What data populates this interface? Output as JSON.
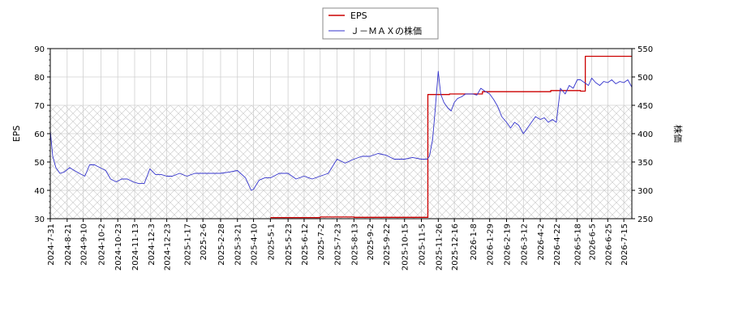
{
  "chart_data": {
    "type": "line",
    "legend": {
      "placement": "top-center",
      "entries": [
        {
          "name": "EPS",
          "color": "#cc0000"
        },
        {
          "name": "Ｊ－ＭＡＸの株価",
          "color": "#3333cc"
        }
      ]
    },
    "y_left": {
      "label": "EPS",
      "ylim": [
        30,
        90
      ],
      "ticks": [
        30,
        40,
        50,
        60,
        70,
        80,
        90
      ]
    },
    "y_right": {
      "label": "株価",
      "ylim": [
        250,
        550
      ],
      "ticks": [
        250,
        300,
        350,
        400,
        450,
        500,
        550
      ]
    },
    "x_range": [
      "2024-07-31",
      "2026-07-25"
    ],
    "x_ticks": [
      "2024-7-31",
      "2024-8-21",
      "2024-9-10",
      "2024-10-2",
      "2024-10-23",
      "2024-11-13",
      "2024-12-3",
      "2024-12-23",
      "2025-1-17",
      "2025-2-6",
      "2025-2-28",
      "2025-3-21",
      "2025-4-10",
      "2025-5-1",
      "2025-5-23",
      "2025-6-12",
      "2025-7-2",
      "2025-7-23",
      "2025-8-13",
      "2025-9-2",
      "2025-9-22",
      "2025-10-15",
      "2025-11-5",
      "2025-11-26",
      "2025-12-16",
      "2026-1-8",
      "2026-1-29",
      "2026-2-19",
      "2026-3-12",
      "2026-4-2",
      "2026-4-22",
      "2026-5-18",
      "2026-6-5",
      "2026-6-25",
      "2026-7-15"
    ],
    "grid": true,
    "hatched_region": {
      "axis": "left",
      "from": 30,
      "to": 70
    },
    "series": [
      {
        "name": "EPS",
        "axis": "left",
        "color": "#cc0000",
        "step": true,
        "x": [
          "2025-05-01",
          "2025-07-02",
          "2025-08-13",
          "2025-11-12",
          "2025-11-13",
          "2025-12-10",
          "2026-01-20",
          "2026-04-15",
          "2026-05-22",
          "2026-05-28",
          "2026-07-25"
        ],
        "y": [
          30.4,
          30.6,
          30.5,
          30.5,
          73.8,
          74.0,
          74.8,
          75.2,
          75.0,
          87.3,
          87.3
        ]
      },
      {
        "name": "Ｊ－ＭＡＸの株価",
        "axis": "right",
        "color": "#3333cc",
        "x": [
          "2024-07-31",
          "2024-08-03",
          "2024-08-07",
          "2024-08-12",
          "2024-08-17",
          "2024-08-24",
          "2024-08-30",
          "2024-09-05",
          "2024-09-12",
          "2024-09-18",
          "2024-09-24",
          "2024-10-01",
          "2024-10-08",
          "2024-10-14",
          "2024-10-21",
          "2024-10-28",
          "2024-11-04",
          "2024-11-11",
          "2024-11-18",
          "2024-11-25",
          "2024-12-02",
          "2024-12-09",
          "2024-12-16",
          "2024-12-23",
          "2024-12-30",
          "2025-01-08",
          "2025-01-17",
          "2025-01-27",
          "2025-02-06",
          "2025-02-17",
          "2025-02-28",
          "2025-03-10",
          "2025-03-21",
          "2025-03-31",
          "2025-04-07",
          "2025-04-10",
          "2025-04-17",
          "2025-04-24",
          "2025-05-01",
          "2025-05-12",
          "2025-05-23",
          "2025-06-02",
          "2025-06-12",
          "2025-06-22",
          "2025-07-02",
          "2025-07-12",
          "2025-07-23",
          "2025-08-02",
          "2025-08-13",
          "2025-08-23",
          "2025-09-02",
          "2025-09-12",
          "2025-09-22",
          "2025-10-02",
          "2025-10-15",
          "2025-10-25",
          "2025-11-05",
          "2025-11-12",
          "2025-11-15",
          "2025-11-19",
          "2025-11-22",
          "2025-11-26",
          "2025-11-29",
          "2025-12-03",
          "2025-12-08",
          "2025-12-12",
          "2025-12-16",
          "2025-12-20",
          "2025-12-25",
          "2025-12-30",
          "2026-01-05",
          "2026-01-08",
          "2026-01-13",
          "2026-01-18",
          "2026-01-23",
          "2026-01-29",
          "2026-02-03",
          "2026-02-08",
          "2026-02-13",
          "2026-02-19",
          "2026-02-24",
          "2026-03-01",
          "2026-03-06",
          "2026-03-12",
          "2026-03-17",
          "2026-03-22",
          "2026-03-27",
          "2026-04-02",
          "2026-04-07",
          "2026-04-12",
          "2026-04-17",
          "2026-04-22",
          "2026-04-27",
          "2026-05-03",
          "2026-05-08",
          "2026-05-13",
          "2026-05-18",
          "2026-05-22",
          "2026-05-27",
          "2026-06-01",
          "2026-06-05",
          "2026-06-10",
          "2026-06-15",
          "2026-06-20",
          "2026-06-25",
          "2026-06-30",
          "2026-07-05",
          "2026-07-10",
          "2026-07-15",
          "2026-07-20",
          "2026-07-25"
        ],
        "y": [
          405,
          360,
          340,
          330,
          332,
          340,
          335,
          330,
          325,
          345,
          345,
          340,
          335,
          320,
          315,
          320,
          320,
          315,
          312,
          312,
          338,
          328,
          328,
          325,
          325,
          330,
          325,
          330,
          330,
          330,
          330,
          332,
          335,
          322,
          300,
          302,
          318,
          322,
          322,
          330,
          330,
          320,
          325,
          320,
          325,
          330,
          355,
          348,
          355,
          360,
          360,
          365,
          362,
          355,
          355,
          358,
          355,
          355,
          360,
          390,
          440,
          510,
          470,
          455,
          445,
          440,
          455,
          462,
          465,
          470,
          470,
          470,
          468,
          480,
          475,
          470,
          460,
          448,
          430,
          420,
          410,
          420,
          415,
          400,
          410,
          420,
          430,
          425,
          428,
          420,
          425,
          420,
          480,
          470,
          485,
          480,
          495,
          495,
          490,
          485,
          498,
          490,
          485,
          492,
          490,
          495,
          488,
          492,
          490,
          495,
          482
        ]
      }
    ]
  }
}
